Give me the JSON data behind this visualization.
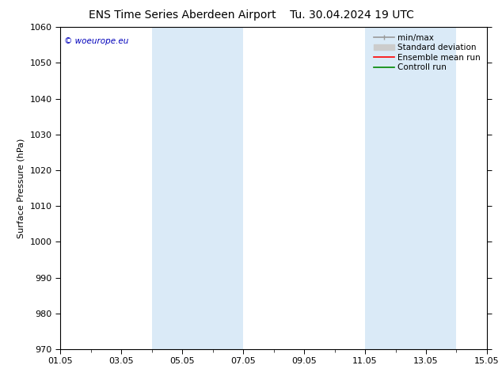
{
  "title_left": "ENS Time Series Aberdeen Airport",
  "title_right": "Tu. 30.04.2024 19 UTC",
  "ylabel": "Surface Pressure (hPa)",
  "ylim": [
    970,
    1060
  ],
  "yticks": [
    970,
    980,
    990,
    1000,
    1010,
    1020,
    1030,
    1040,
    1050,
    1060
  ],
  "xlim": [
    0,
    14
  ],
  "xtick_labels": [
    "01.05",
    "03.05",
    "05.05",
    "07.05",
    "09.05",
    "11.05",
    "13.05",
    "15.05"
  ],
  "xtick_positions": [
    0,
    2,
    4,
    6,
    8,
    10,
    12,
    14
  ],
  "shaded_bands": [
    {
      "start": 3.0,
      "end": 6.0,
      "color": "#daeaf7"
    },
    {
      "start": 10.0,
      "end": 13.0,
      "color": "#daeaf7"
    }
  ],
  "copyright_text": "© woeurope.eu",
  "copyright_color": "#0000bb",
  "background_color": "#ffffff",
  "plot_bg_color": "#ffffff",
  "legend_items": [
    {
      "label": "min/max",
      "color": "#999999",
      "lw": 1.2
    },
    {
      "label": "Standard deviation",
      "color": "#cccccc",
      "lw": 6
    },
    {
      "label": "Ensemble mean run",
      "color": "#ff0000",
      "lw": 1.2
    },
    {
      "label": "Controll run",
      "color": "#008800",
      "lw": 1.2
    }
  ],
  "title_fontsize": 10,
  "axis_fontsize": 8,
  "tick_fontsize": 8,
  "legend_fontsize": 7.5
}
